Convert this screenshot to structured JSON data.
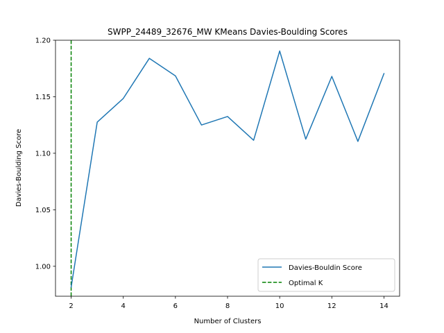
{
  "chart_data": {
    "type": "line",
    "title": "SWPP_24489_32676_MW KMeans Davies-Boulding Scores",
    "xlabel": "Number of Clusters",
    "ylabel": "Davies-Boulding Score",
    "xlim": [
      1.4,
      14.6
    ],
    "ylim": [
      0.9735,
      1.2
    ],
    "x_ticks": [
      2,
      4,
      6,
      8,
      10,
      12,
      14
    ],
    "y_ticks": [
      1.0,
      1.05,
      1.1,
      1.15,
      1.2
    ],
    "x_tick_labels": [
      "2",
      "4",
      "6",
      "8",
      "10",
      "12",
      "14"
    ],
    "y_tick_labels": [
      "1.00",
      "1.05",
      "1.10",
      "1.15",
      "1.20"
    ],
    "grid": false,
    "legend_position": "lower-right",
    "series": [
      {
        "name": "Davies-Bouldin Score",
        "color": "#1f77b4",
        "style": "solid",
        "x": [
          2,
          3,
          4,
          5,
          6,
          7,
          8,
          9,
          10,
          11,
          12,
          13,
          14
        ],
        "values": [
          0.9815,
          1.1275,
          1.1485,
          1.184,
          1.1685,
          1.125,
          1.1325,
          1.1115,
          1.1905,
          1.1125,
          1.168,
          1.1105,
          1.1705
        ]
      }
    ],
    "vline": {
      "name": "Optimal K",
      "x": 2,
      "color": "#008000",
      "style": "dashed"
    }
  }
}
